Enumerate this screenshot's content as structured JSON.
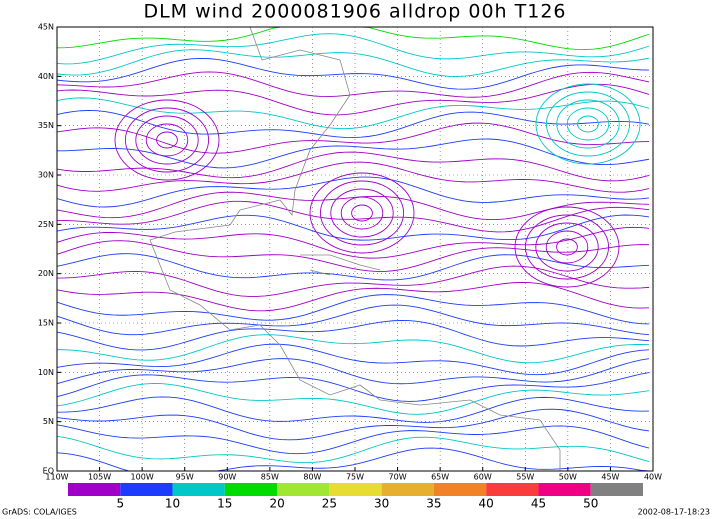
{
  "title": "DLM wind 2000081906 alldrop 00h T126",
  "map": {
    "lon_labels": [
      "110W",
      "105W",
      "100W",
      "95W",
      "90W",
      "85W",
      "80W",
      "75W",
      "70W",
      "65W",
      "60W",
      "55W",
      "50W",
      "45W",
      "40W"
    ],
    "lat_labels": [
      "EQ",
      "5N",
      "10N",
      "15N",
      "20N",
      "25N",
      "30N",
      "35N",
      "40N",
      "45N"
    ]
  },
  "colorbar": {
    "colors": [
      "#a000c8",
      "#1e3cff",
      "#00c8c8",
      "#00dc00",
      "#a0e632",
      "#e6dc32",
      "#e6af2d",
      "#f08228",
      "#fa3c3c",
      "#f00082",
      "#808080"
    ],
    "labels": [
      5,
      10,
      15,
      20,
      25,
      30,
      35,
      40,
      45,
      50
    ]
  },
  "footer": {
    "left": "GrADS: COLA/IGES",
    "right": "2002-08-17-18:23"
  }
}
